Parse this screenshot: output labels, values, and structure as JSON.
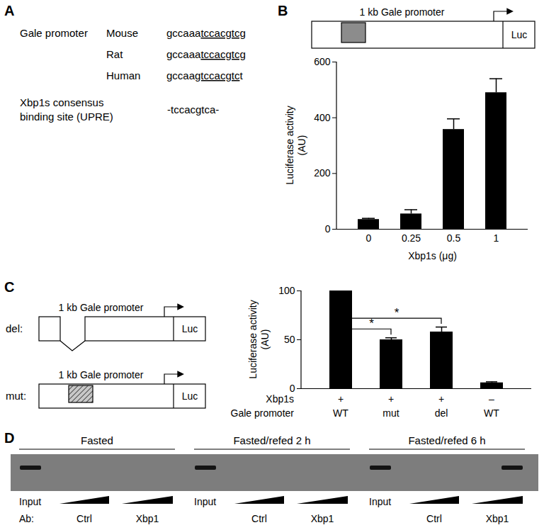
{
  "chart_data": [
    {
      "type": "bar",
      "panel": "B",
      "categories": [
        "0",
        "0.25",
        "0.5",
        "1"
      ],
      "values": [
        35,
        55,
        358,
        490
      ],
      "errors": [
        4,
        15,
        38,
        50
      ],
      "color": "#000000",
      "xlabel": "Xbp1s (μg)",
      "ylabel": "Luciferase activity (AU)",
      "ylim": [
        0,
        600
      ],
      "yticks": [
        0,
        200,
        400,
        600
      ]
    },
    {
      "type": "bar",
      "panel": "C",
      "categories": [
        null,
        null,
        null,
        null
      ],
      "values": [
        100,
        50,
        58,
        6
      ],
      "errors": [
        0,
        2,
        5,
        1
      ],
      "color": "#000000",
      "ylabel": "Luciferase activity (AU)",
      "ylim": [
        0,
        100
      ],
      "yticks": [
        0,
        50,
        100
      ],
      "tick_labels": "y",
      "condition_rows": [
        {
          "label": "Xbp1s",
          "values": [
            "+",
            "+",
            "+",
            "–"
          ]
        },
        {
          "label": "Gale promoter",
          "values": [
            "WT",
            "mut",
            "del",
            "WT"
          ]
        }
      ],
      "significance": [
        {
          "from": 0,
          "to": 1,
          "label": "*"
        },
        {
          "from": 0,
          "to": 2,
          "label": "*"
        }
      ]
    }
  ],
  "panel_A": {
    "letter": "A",
    "title": "Gale promoter",
    "species": [
      {
        "name": "Mouse",
        "before": "gccaaa",
        "underlined": "tccacgtcg"
      },
      {
        "name": "Rat",
        "before": "gccaaa",
        "underlined": "tccacgtcg"
      },
      {
        "name": "Human",
        "before": "gccaa",
        "underlined": "gtccacgtc",
        "after": "t"
      }
    ],
    "consensus_label": [
      "Xbp1s consensus",
      "binding site (UPRE)"
    ],
    "consensus": "-tccacgtca-"
  },
  "panel_B_schematic": {
    "promoter_label": "1 kb Gale promoter",
    "reporter": "Luc"
  },
  "panel_C_schematic": {
    "letter": "C",
    "constructs": [
      {
        "name": "del:",
        "promoter_label": "1 kb Gale promoter",
        "reporter": "Luc"
      },
      {
        "name": "mut:",
        "promoter_label": "1 kb Gale promoter",
        "reporter": "Luc"
      }
    ]
  },
  "panel_D": {
    "letter": "D",
    "groups": [
      {
        "label": "Fasted",
        "input_band": true,
        "ctrl_band": false,
        "xbp1_band": false
      },
      {
        "label": "Fasted/refed 2 h",
        "input_band": true,
        "ctrl_band": false,
        "xbp1_band": false
      },
      {
        "label": "Fasted/refed 6 h",
        "input_band": true,
        "ctrl_band": false,
        "xbp1_band": true
      }
    ],
    "input_label": "Input",
    "ab_label": "Ab:",
    "ctrl_label": "Ctrl",
    "xbp1_label": "Xbp1"
  }
}
